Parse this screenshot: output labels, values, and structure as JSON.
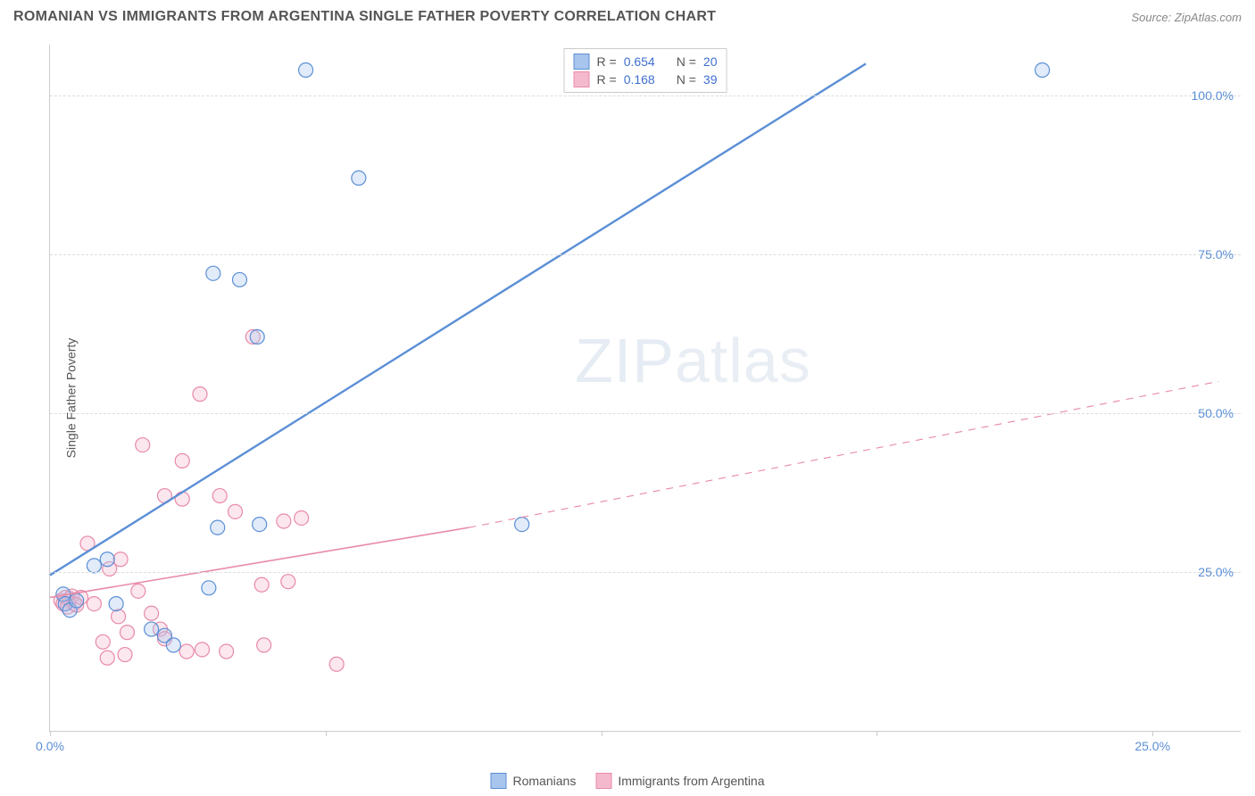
{
  "title": "ROMANIAN VS IMMIGRANTS FROM ARGENTINA SINGLE FATHER POVERTY CORRELATION CHART",
  "source_label": "Source: ",
  "source_value": "ZipAtlas.com",
  "ylabel": "Single Father Poverty",
  "watermark_zip": "ZIP",
  "watermark_atlas": "atlas",
  "chart": {
    "type": "scatter",
    "xlim": [
      0,
      27
    ],
    "ylim": [
      0,
      108
    ],
    "xticks": [
      0,
      12.5,
      25
    ],
    "xtick_labels": [
      "0.0%",
      "",
      "25.0%"
    ],
    "xticks_minor": [
      6.25,
      18.75
    ],
    "yticks": [
      25,
      50,
      75,
      100
    ],
    "ytick_labels": [
      "25.0%",
      "50.0%",
      "75.0%",
      "100.0%"
    ],
    "background_color": "#ffffff",
    "grid_color": "#dddddd",
    "axis_color": "#cccccc",
    "label_color": "#555555",
    "tick_label_color": "#5b8fd6",
    "marker_radius": 8,
    "marker_stroke_width": 1.2,
    "marker_fill_opacity": 0.35,
    "series": [
      {
        "name": "Romanians",
        "color_stroke": "#5b8fd6",
        "color_fill": "#a8c5ed",
        "R": "0.654",
        "N": "20",
        "line_width": 2.4,
        "trend_solid": {
          "x1": 0.0,
          "y1": 24.5,
          "x2": 18.5,
          "y2": 105.0
        },
        "trend_dash": null,
        "points": [
          [
            0.3,
            21.5
          ],
          [
            0.35,
            20.0
          ],
          [
            0.45,
            19.0
          ],
          [
            0.6,
            20.5
          ],
          [
            1.0,
            26.0
          ],
          [
            1.3,
            27.0
          ],
          [
            1.5,
            20.0
          ],
          [
            2.3,
            16.0
          ],
          [
            2.6,
            15.0
          ],
          [
            2.8,
            13.5
          ],
          [
            3.6,
            22.5
          ],
          [
            3.7,
            72.0
          ],
          [
            3.8,
            32.0
          ],
          [
            4.3,
            71.0
          ],
          [
            4.7,
            62.0
          ],
          [
            4.75,
            32.5
          ],
          [
            5.8,
            104.0
          ],
          [
            7.0,
            87.0
          ],
          [
            10.7,
            32.5
          ],
          [
            22.5,
            104.0
          ]
        ]
      },
      {
        "name": "Immigrants from Argentina",
        "color_stroke": "#e88aa8",
        "color_fill": "#f5b9cd",
        "R": "0.168",
        "N": "39",
        "line_width": 1.6,
        "trend_solid": {
          "x1": 0.0,
          "y1": 21.0,
          "x2": 9.5,
          "y2": 32.0
        },
        "trend_dash": {
          "x1": 9.5,
          "y1": 32.0,
          "x2": 26.5,
          "y2": 55.0
        },
        "points": [
          [
            0.25,
            20.5
          ],
          [
            0.3,
            20.0
          ],
          [
            0.35,
            21.0
          ],
          [
            0.4,
            19.5
          ],
          [
            0.45,
            20.8
          ],
          [
            0.5,
            21.2
          ],
          [
            0.55,
            20.0
          ],
          [
            0.6,
            19.8
          ],
          [
            0.7,
            21.0
          ],
          [
            0.85,
            29.5
          ],
          [
            1.0,
            20.0
          ],
          [
            1.2,
            14.0
          ],
          [
            1.3,
            11.5
          ],
          [
            1.35,
            25.5
          ],
          [
            1.55,
            18.0
          ],
          [
            1.6,
            27.0
          ],
          [
            1.7,
            12.0
          ],
          [
            1.75,
            15.5
          ],
          [
            2.0,
            22.0
          ],
          [
            2.1,
            45.0
          ],
          [
            2.3,
            18.5
          ],
          [
            2.5,
            16.0
          ],
          [
            2.6,
            37.0
          ],
          [
            2.6,
            14.5
          ],
          [
            3.0,
            42.5
          ],
          [
            3.1,
            12.5
          ],
          [
            3.0,
            36.5
          ],
          [
            3.4,
            53.0
          ],
          [
            3.45,
            12.8
          ],
          [
            3.85,
            37.0
          ],
          [
            4.0,
            12.5
          ],
          [
            4.6,
            62.0
          ],
          [
            4.8,
            23.0
          ],
          [
            4.85,
            13.5
          ],
          [
            5.3,
            33.0
          ],
          [
            5.4,
            23.5
          ],
          [
            5.7,
            33.5
          ],
          [
            6.5,
            10.5
          ],
          [
            4.2,
            34.5
          ]
        ]
      }
    ]
  },
  "legend_top": {
    "R_label": "R =",
    "N_label": "N ="
  },
  "legend_bottom": {
    "items": [
      "Romanians",
      "Immigrants from Argentina"
    ]
  }
}
